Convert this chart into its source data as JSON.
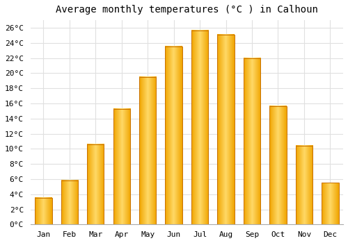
{
  "title": "Average monthly temperatures (°C ) in Calhoun",
  "months": [
    "Jan",
    "Feb",
    "Mar",
    "Apr",
    "May",
    "Jun",
    "Jul",
    "Aug",
    "Sep",
    "Oct",
    "Nov",
    "Dec"
  ],
  "values": [
    3.5,
    5.8,
    10.6,
    15.3,
    19.5,
    23.5,
    25.6,
    25.1,
    22.0,
    15.6,
    10.4,
    5.5
  ],
  "bar_color_center": "#FFD966",
  "bar_color_edge": "#F0A500",
  "bar_border_color": "#C87000",
  "ylim": [
    0,
    27
  ],
  "ytick_step": 2,
  "background_color": "#ffffff",
  "grid_color": "#e0e0e0",
  "title_fontsize": 10,
  "tick_fontsize": 8,
  "bar_width": 0.65
}
